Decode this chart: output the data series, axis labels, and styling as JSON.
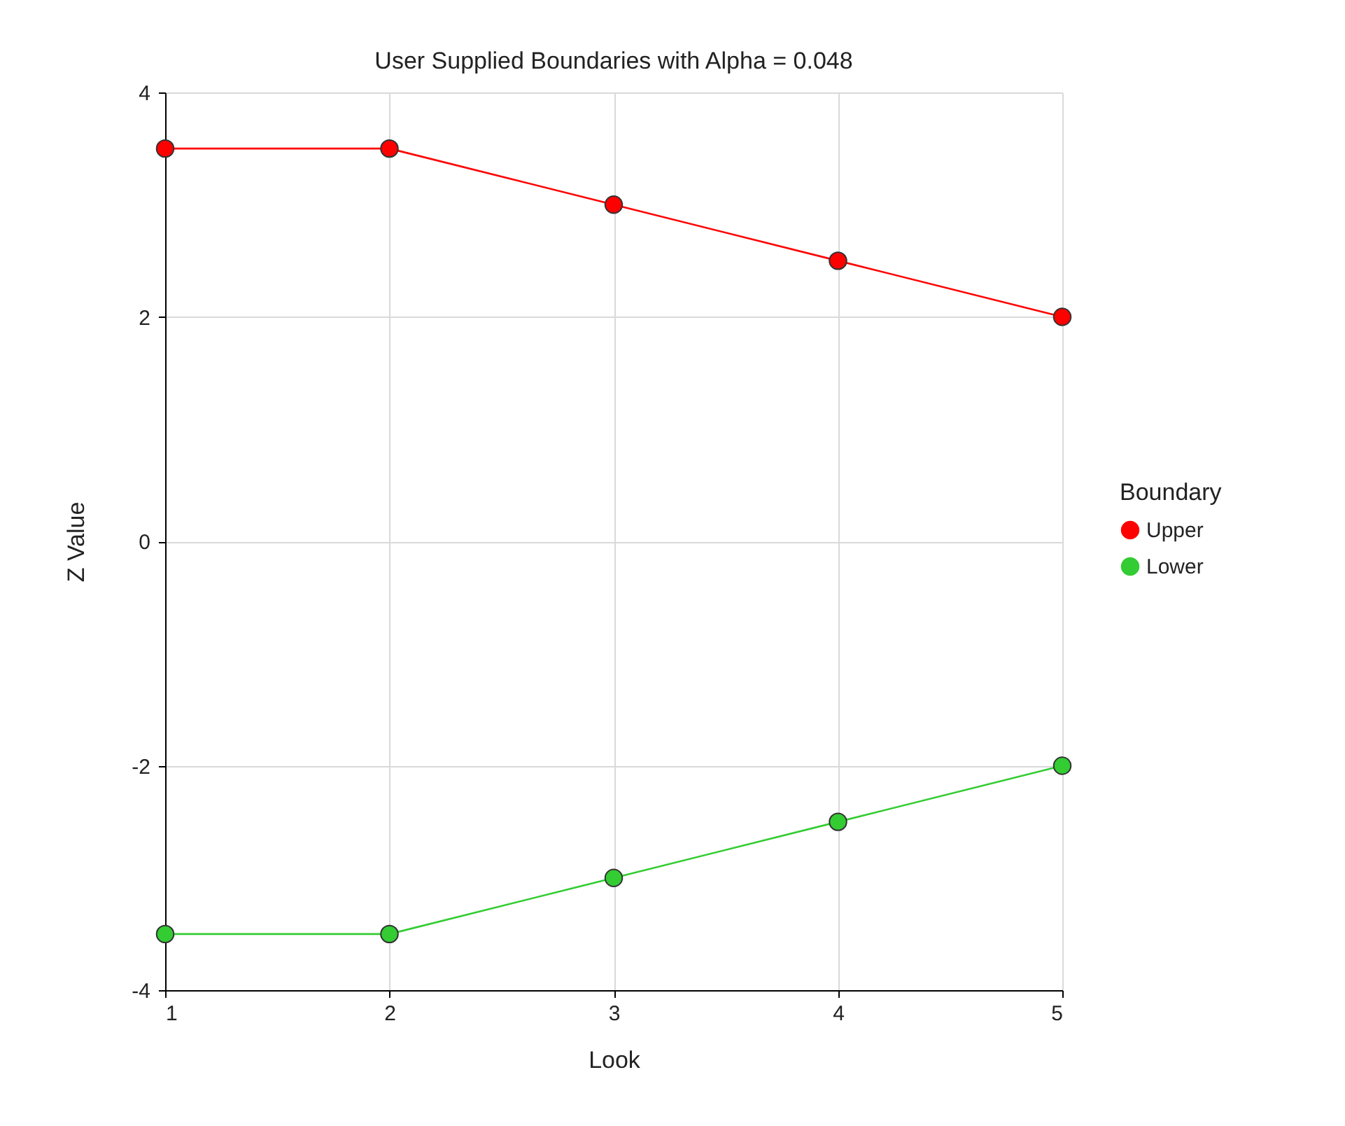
{
  "chart_data": {
    "type": "line",
    "title": "User Supplied Boundaries with Alpha = 0.048",
    "xlabel": "Look",
    "ylabel": "Z Value",
    "legend_title": "Boundary",
    "x": [
      1,
      2,
      3,
      4,
      5
    ],
    "series": [
      {
        "name": "Upper",
        "color": "#ff0000",
        "values": [
          3.5,
          3.5,
          3.0,
          2.5,
          2.0
        ]
      },
      {
        "name": "Lower",
        "color": "#33cc33",
        "values": [
          -3.5,
          -3.5,
          -3.0,
          -2.5,
          -2.0
        ]
      }
    ],
    "xlim": [
      1,
      5
    ],
    "xticks": [
      1,
      2,
      3,
      4,
      5
    ],
    "ylim": [
      -4,
      4
    ],
    "yticks": [
      -4,
      -2,
      0,
      2,
      4
    ],
    "grid": true,
    "legend": "right",
    "marker": "circle",
    "line_style": "solid"
  }
}
